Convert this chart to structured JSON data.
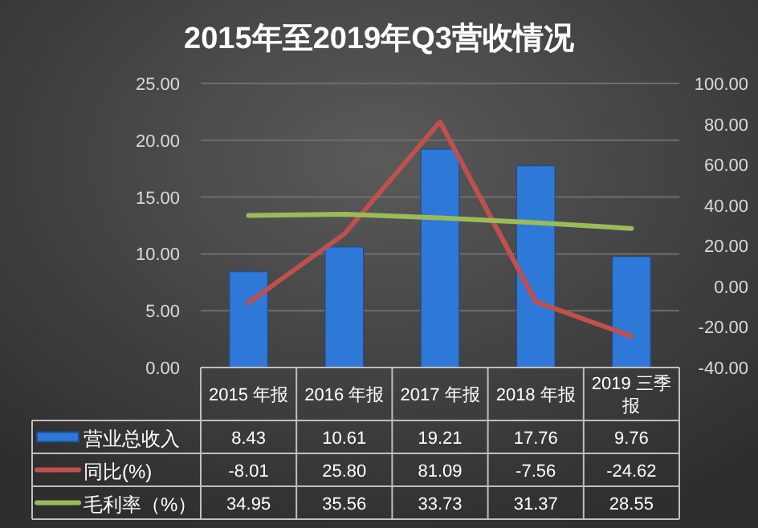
{
  "chart_data": {
    "type": "bar",
    "title": "2015年至2019年Q3营收情况",
    "categories": [
      "2015 年报",
      "2016 年报",
      "2017 年报",
      "2018 年报",
      "2019 三季报"
    ],
    "series": [
      {
        "name": "营业总收入",
        "color": "#2e78d8",
        "values": [
          8.43,
          10.61,
          19.21,
          17.76,
          9.76
        ],
        "value_labels": [
          "8.43",
          "10.61",
          "19.21",
          "17.76",
          "9.76"
        ]
      },
      {
        "name": "同比(%)",
        "type": "line",
        "axis": "y2",
        "color": "#c0504d",
        "values": [
          -8.01,
          25.8,
          81.09,
          -7.56,
          -24.62
        ],
        "value_labels": [
          "-8.01",
          "25.80",
          "81.09",
          "-7.56",
          "-24.62"
        ]
      },
      {
        "name": "毛利率（%）",
        "type": "line",
        "axis": "y2",
        "color": "#9bbb59",
        "values": [
          34.95,
          35.56,
          33.73,
          31.37,
          28.55
        ],
        "value_labels": [
          "34.95",
          "35.56",
          "33.73",
          "31.37",
          "28.55"
        ]
      }
    ],
    "ylim": [
      0,
      25
    ],
    "yticks": [
      {
        "value": 0,
        "label": "0.00"
      },
      {
        "value": 5,
        "label": "5.00"
      },
      {
        "value": 10,
        "label": "10.00"
      },
      {
        "value": 15,
        "label": "15.00"
      },
      {
        "value": 20,
        "label": "20.00"
      },
      {
        "value": 25,
        "label": "25.00"
      }
    ],
    "y2lim": [
      -40,
      100
    ],
    "y2ticks": [
      {
        "value": -40,
        "label": "-40.00"
      },
      {
        "value": -20,
        "label": "-20.00"
      },
      {
        "value": 0,
        "label": "0.00"
      },
      {
        "value": 20,
        "label": "20.00"
      },
      {
        "value": 40,
        "label": "40.00"
      },
      {
        "value": 60,
        "label": "60.00"
      },
      {
        "value": 80,
        "label": "80.00"
      },
      {
        "value": 100,
        "label": "100.00"
      }
    ],
    "grid": "y",
    "legend": "bottom",
    "marker": "none",
    "line_style": "solid"
  }
}
